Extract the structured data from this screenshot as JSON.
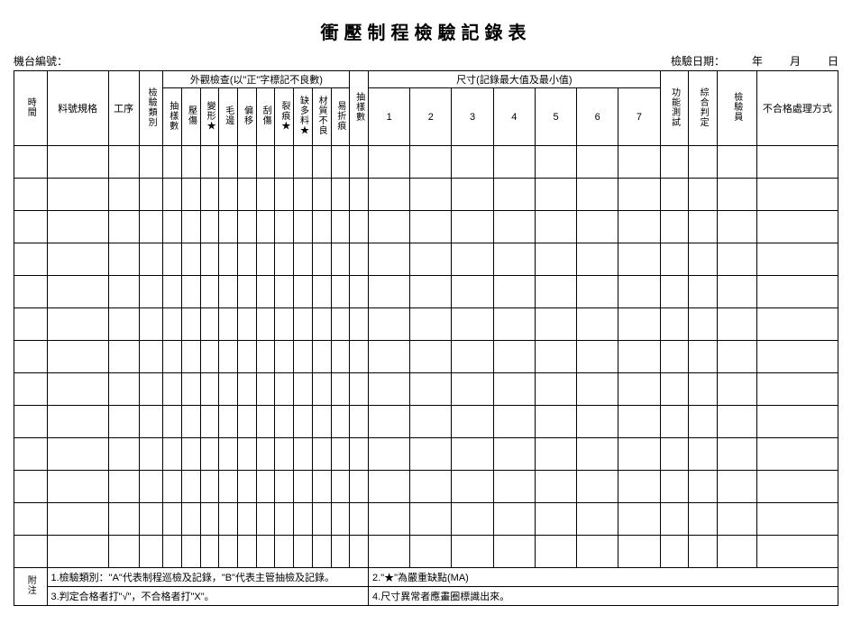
{
  "title": "衝壓制程檢驗記錄表",
  "labels": {
    "machineNo": "機台編號：",
    "inspectDate": "檢驗日期：",
    "year": "年",
    "month": "月",
    "day": "日"
  },
  "columns": {
    "time": "時間",
    "partSpec": "料號規格",
    "process": "工序",
    "inspectType": "檢驗類別",
    "appearanceGroup": "外觀檢查(以\"正\"字標記不良數)",
    "sampleQty": "抽樣數",
    "pressMark": "壓傷",
    "deform": "變形★",
    "burr": "毛邊",
    "offset": "偏移",
    "scratch": "刮傷",
    "crack": "裂痕★",
    "missingMaterial": "缺多料★",
    "surfaceBad": "材質不良",
    "foldMark": "易折痕",
    "sampleQty2": "抽樣數",
    "dimensionGroup": "尺寸(記錄最大值及最小值)",
    "d1": "1",
    "d2": "2",
    "d3": "3",
    "d4": "4",
    "d5": "5",
    "d6": "6",
    "d7": "7",
    "funcTest": "功能測試",
    "overallJudge": "綜合判定",
    "inspector": "檢驗員",
    "rejectMethod": "不合格處理方式"
  },
  "notes": {
    "label": "附注",
    "n1": "1.檢驗類別：\"A\"代表制程巡檢及記錄，\"B\"代表主管抽檢及記錄。",
    "n2": "2.\"★\"為嚴重缺點(MA)",
    "n3": "3.判定合格者打\"√\"，不合格者打\"X\"。",
    "n4": "4.尺寸異常者應畫圈標識出來。"
  },
  "style": {
    "numDataRows": 13,
    "background": "#ffffff",
    "border": "#000000",
    "titleFontSize": 20,
    "bodyFontSize": 12,
    "colWidths": {
      "time": 30,
      "partSpec": 56,
      "process": 28,
      "inspectType": 22,
      "narrow": 17,
      "dimension": 38,
      "funcTest": 26,
      "overallJudge": 26,
      "inspector": 36,
      "rejectMethod": 74
    }
  }
}
